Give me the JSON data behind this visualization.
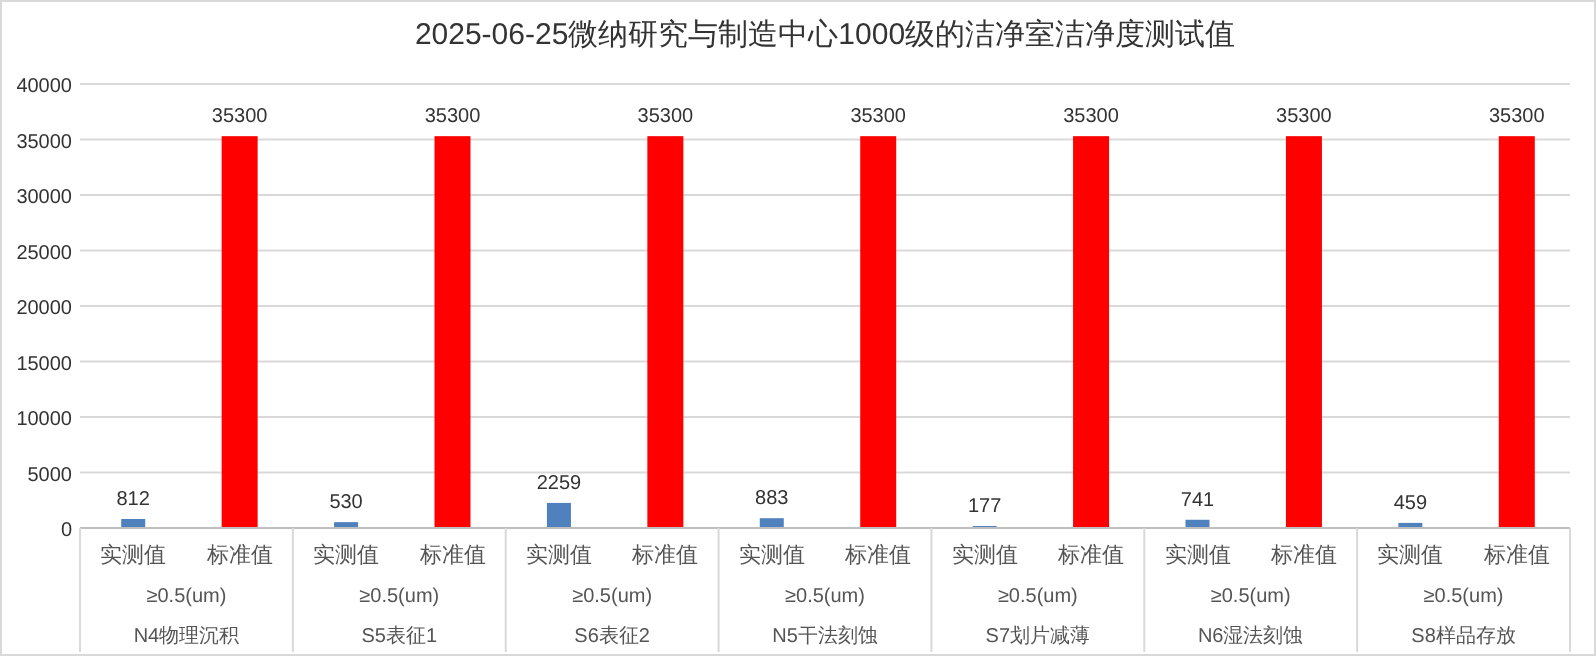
{
  "chart_data": {
    "type": "bar",
    "title": "2025-06-25微纳研究与制造中心1000级的洁净室洁净度测试值",
    "categories": [
      "N4物理沉积",
      "S5表征1",
      "S6表征2",
      "N5干法刻蚀",
      "S7划片减薄",
      "N6湿法刻蚀",
      "S8样品存放"
    ],
    "series": [
      {
        "name": "实测值",
        "color": "#4f81bd",
        "values": [
          812,
          530,
          2259,
          883,
          177,
          741,
          459
        ]
      },
      {
        "name": "标准值",
        "color": "#ff0000",
        "values": [
          35300,
          35300,
          35300,
          35300,
          35300,
          35300,
          35300
        ]
      }
    ],
    "annotations": [
      "≥0.5(um)",
      "≥0.5(um)",
      "≥0.5(um)",
      "≥0.5(um)",
      "≥0.5(um)",
      "≥0.5(um)",
      "≥0.5(um)"
    ],
    "ylim": [
      0,
      40000
    ],
    "yticks": [
      0,
      5000,
      10000,
      15000,
      20000,
      25000,
      30000,
      35000,
      40000
    ],
    "grid": "y",
    "data_labels": true,
    "legend": false
  }
}
